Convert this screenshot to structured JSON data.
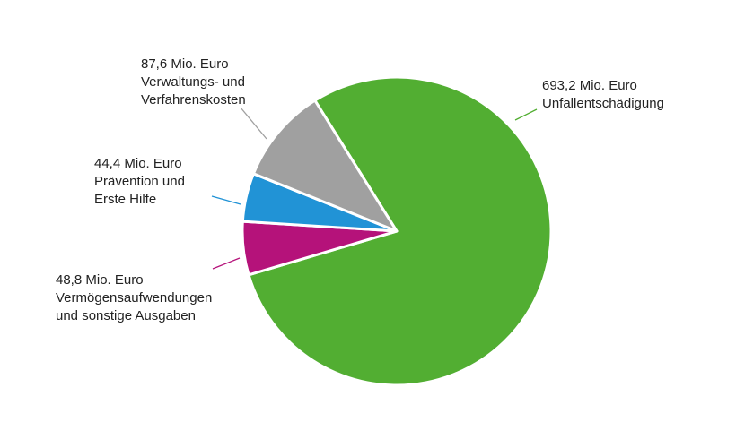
{
  "chart_data": {
    "type": "pie",
    "title": "",
    "unit": "Mio. Euro",
    "slices": [
      {
        "value": 693.2,
        "value_label": "693,2 Mio. Euro",
        "label": [
          "Unfallentschädigung"
        ],
        "color": "#52ae32"
      },
      {
        "value": 48.8,
        "value_label": "48,8 Mio. Euro",
        "label": [
          "Vermögensaufwendungen",
          "und sonstige Ausgaben"
        ],
        "color": "#b5127a"
      },
      {
        "value": 44.4,
        "value_label": "44,4 Mio. Euro",
        "label": [
          "Prävention und",
          "Erste Hilfe"
        ],
        "color": "#2193d6"
      },
      {
        "value": 87.6,
        "value_label": "87,6 Mio. Euro",
        "label": [
          "Verwaltungs- und",
          "Verfahrenskosten"
        ],
        "color": "#a0a0a0"
      }
    ]
  }
}
